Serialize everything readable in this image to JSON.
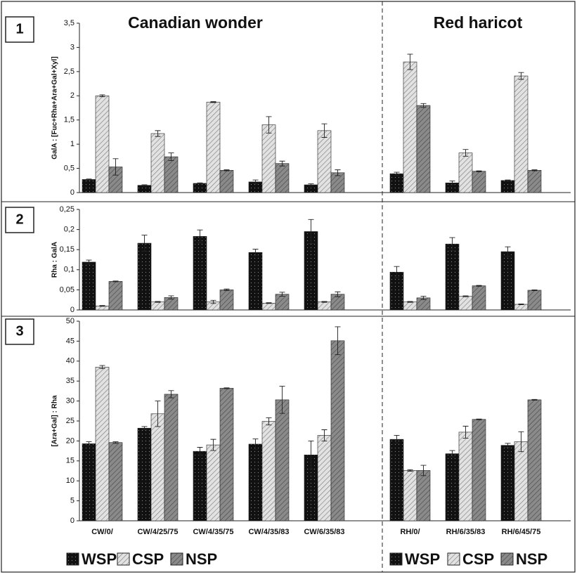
{
  "group_titles": [
    "Canadian wonder",
    "Red haricot"
  ],
  "chart_data": [
    {
      "type": "bar",
      "panel": "1",
      "ylabel": "GalA : [Fuc+Rha+Ara+Gal+Xyl]",
      "ylim": [
        0,
        3.5
      ],
      "yticks": [
        0,
        {
          "value": 0.5,
          "label": "0,5"
        },
        1,
        {
          "value": 1.5,
          "label": "1,5"
        },
        2,
        {
          "value": 2.5,
          "label": "2,5"
        },
        3,
        {
          "value": 3.5,
          "label": "3,5"
        }
      ],
      "series": [
        {
          "name": "WSP",
          "color": "#111111",
          "values": [
            0.27,
            0.15,
            0.19,
            0.22,
            0.16,
            0.39,
            0.2,
            0.25
          ],
          "errors": [
            0.01,
            0.01,
            0.01,
            0.04,
            0.02,
            0.03,
            0.04,
            0.01
          ]
        },
        {
          "name": "CSP",
          "color": "#e2e2e2",
          "values": [
            2.0,
            1.22,
            1.87,
            1.4,
            1.28,
            2.7,
            0.82,
            2.41
          ],
          "errors": [
            0.02,
            0.06,
            0.01,
            0.17,
            0.14,
            0.16,
            0.07,
            0.07
          ]
        },
        {
          "name": "NSP",
          "color": "#8a8a8a",
          "values": [
            0.53,
            0.74,
            0.46,
            0.6,
            0.41,
            1.8,
            0.44,
            0.46
          ],
          "errors": [
            0.17,
            0.08,
            0.01,
            0.05,
            0.06,
            0.04,
            0.01,
            0.01
          ]
        }
      ]
    },
    {
      "type": "bar",
      "panel": "2",
      "ylabel": "Rha : GalA",
      "ylim": [
        0,
        0.25
      ],
      "yticks": [
        0,
        {
          "value": 0.05,
          "label": "0,05"
        },
        {
          "value": 0.1,
          "label": "0,1"
        },
        {
          "value": 0.15,
          "label": "0,15"
        },
        {
          "value": 0.2,
          "label": "0,2"
        },
        {
          "value": 0.25,
          "label": "0,25"
        }
      ],
      "series": [
        {
          "color": "#111111",
          "values": [
            0.119,
            0.166,
            0.183,
            0.143,
            0.195,
            0.094,
            0.164,
            0.145
          ],
          "errors": [
            0.005,
            0.02,
            0.016,
            0.008,
            0.03,
            0.014,
            0.016,
            0.012
          ]
        },
        {
          "color": "#e2e2e2",
          "values": [
            0.01,
            0.02,
            0.02,
            0.017,
            0.02,
            0.02,
            0.034,
            0.014
          ],
          "errors": [
            0.001,
            0.001,
            0.004,
            0.001,
            0.001,
            0.001,
            0.001,
            0.001
          ]
        },
        {
          "color": "#8a8a8a",
          "values": [
            0.071,
            0.031,
            0.05,
            0.039,
            0.039,
            0.03,
            0.06,
            0.049
          ],
          "errors": [
            0.001,
            0.004,
            0.002,
            0.005,
            0.006,
            0.004,
            0.001,
            0.001
          ]
        }
      ]
    },
    {
      "type": "bar",
      "panel": "3",
      "ylabel": "[Ara+Gal] : Rha",
      "categories": [
        "CW/0/",
        "CW/4/25/75",
        "CW/4/35/75",
        "CW/4/35/83",
        "CW/6/35/83",
        "RH/0/",
        "RH/6/35/83",
        "RH/6/45/75"
      ],
      "ylim": [
        0,
        50
      ],
      "yticks": [
        0,
        5,
        10,
        15,
        20,
        25,
        30,
        35,
        40,
        45,
        50
      ],
      "series": [
        {
          "color": "#111111",
          "values": [
            19.3,
            23.2,
            17.4,
            19.2,
            16.5,
            20.4,
            16.8,
            18.9
          ],
          "errors": [
            0.5,
            0.4,
            1,
            1.3,
            3.5,
            1,
            0.8,
            0.5
          ]
        },
        {
          "color": "#e2e2e2",
          "values": [
            38.5,
            26.8,
            19,
            24.9,
            21.4,
            12.6,
            22.2,
            19.8
          ],
          "errors": [
            0.4,
            3.2,
            1.4,
            0.9,
            1.4,
            0.2,
            1.5,
            2.5
          ]
        },
        {
          "color": "#8a8a8a",
          "values": [
            19.6,
            31.7,
            33.2,
            30.3,
            45.1,
            12.6,
            25.4,
            30.3
          ],
          "errors": [
            0.2,
            0.9,
            0.1,
            3.4,
            3.5,
            1.3,
            0.1,
            0.1
          ]
        }
      ]
    }
  ]
}
